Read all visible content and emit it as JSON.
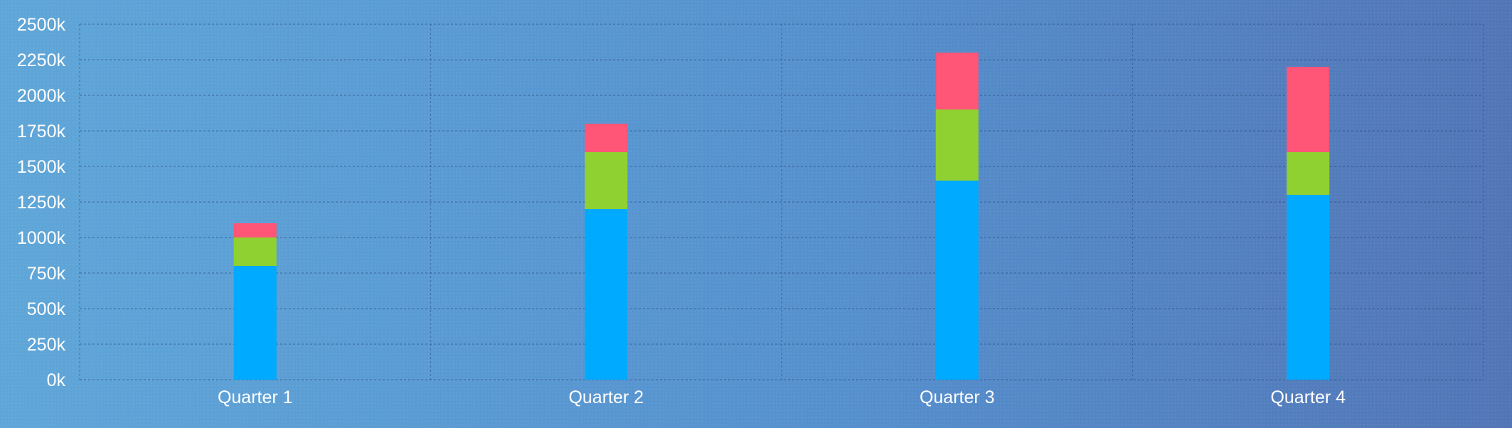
{
  "chart_data": {
    "type": "bar",
    "stacked": true,
    "categories": [
      "Quarter 1",
      "Quarter 2",
      "Quarter 3",
      "Quarter 4"
    ],
    "series": [
      {
        "values": [
          800,
          1200,
          1400,
          1300
        ],
        "color": "#00aaff"
      },
      {
        "values": [
          200,
          400,
          500,
          300
        ],
        "color": "#8fd130"
      },
      {
        "values": [
          100,
          200,
          400,
          600
        ],
        "color": "#ff5577"
      }
    ],
    "yticks": [
      "0k",
      "250k",
      "500k",
      "750k",
      "1000k",
      "1250k",
      "1500k",
      "1750k",
      "2000k",
      "2250k",
      "2500k"
    ],
    "ylim": [
      0,
      2500
    ],
    "y_unit": "k",
    "grid": true,
    "grid_style": "dashed"
  }
}
